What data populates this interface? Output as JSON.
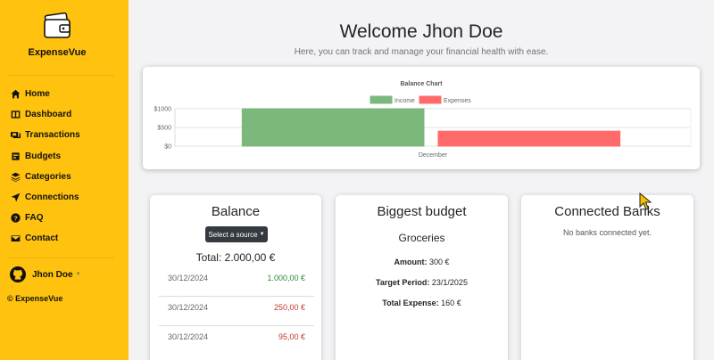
{
  "app": {
    "name": "ExpenseVue"
  },
  "sidebar": {
    "items": [
      {
        "label": "Home",
        "icon": "home-icon"
      },
      {
        "label": "Dashboard",
        "icon": "dashboard-icon"
      },
      {
        "label": "Transactions",
        "icon": "transactions-icon"
      },
      {
        "label": "Budgets",
        "icon": "budgets-icon"
      },
      {
        "label": "Categories",
        "icon": "categories-icon"
      },
      {
        "label": "Connections",
        "icon": "connections-icon"
      },
      {
        "label": "FAQ",
        "icon": "faq-icon"
      },
      {
        "label": "Contact",
        "icon": "contact-icon"
      }
    ],
    "user": "Jhon Doe",
    "copyright": "© ExpenseVue"
  },
  "header": {
    "title": "Welcome Jhon Doe",
    "subtitle": "Here, you can track and manage your financial health with ease."
  },
  "chart_data": {
    "type": "bar",
    "title": "Balance Chart",
    "categories": [
      "December"
    ],
    "series": [
      {
        "name": "Income",
        "values": [
          1000
        ],
        "color": "#7cb77c"
      },
      {
        "name": "Expenses",
        "values": [
          400
        ],
        "color": "#ff6b6b"
      }
    ],
    "yticks": [
      "$0",
      "$500",
      "$1000"
    ],
    "ylim": [
      0,
      1000
    ],
    "legend": "top"
  },
  "balance": {
    "title": "Balance",
    "select_label": "Select a source",
    "total": "Total: 2.000,00 €",
    "rows": [
      {
        "date": "30/12/2024",
        "amount": "1.000,00 €",
        "color": "#2e8b2e"
      },
      {
        "date": "30/12/2024",
        "amount": "250,00 €",
        "color": "#c0392b"
      },
      {
        "date": "30/12/2024",
        "amount": "95,00 €",
        "color": "#c0392b"
      }
    ]
  },
  "budget": {
    "title": "Biggest budget",
    "name": "Groceries",
    "amount_label": "Amount:",
    "amount": "300 €",
    "period_label": "Target Period:",
    "period": "23/1/2025",
    "expense_label": "Total Expense:",
    "expense": "160 €"
  },
  "banks": {
    "title": "Connected Banks",
    "empty": "No banks connected yet."
  }
}
